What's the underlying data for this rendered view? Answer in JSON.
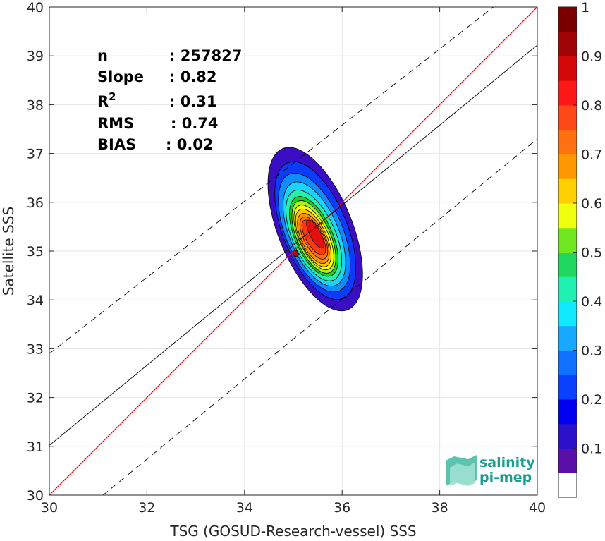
{
  "chart_data": {
    "type": "heatmap",
    "subtype": "density-contour-scatter",
    "xlabel": "TSG (GOSUD-Research-vessel) SSS",
    "ylabel": "Satellite SSS",
    "xlim": [
      30,
      40
    ],
    "ylim": [
      30,
      40
    ],
    "x_ticks": [
      "30",
      "32",
      "34",
      "36",
      "38",
      "40"
    ],
    "y_ticks": [
      "30",
      "31",
      "32",
      "33",
      "34",
      "35",
      "36",
      "37",
      "38",
      "39",
      "40"
    ],
    "grid": true,
    "stats": [
      {
        "label": "n",
        "value": ": 257827"
      },
      {
        "label": "Slope",
        "value": ": 0.82"
      },
      {
        "label": "R",
        "label_sup": "2",
        "value": ": 0.31"
      },
      {
        "label": "RMS",
        "value": ": 0.74"
      },
      {
        "label": "BIAS",
        "value": ": 0.02"
      }
    ],
    "lines": {
      "one_to_one": {
        "color": "#ff0000",
        "points": [
          [
            30,
            30
          ],
          [
            40,
            40
          ]
        ]
      },
      "regression": {
        "color": "#000000",
        "style": "solid",
        "points": [
          [
            30,
            31.02
          ],
          [
            40,
            39.22
          ]
        ]
      },
      "upper_bound": {
        "color": "#000000",
        "style": "dashed",
        "points": [
          [
            30,
            32.9
          ],
          [
            39.1,
            40
          ]
        ]
      },
      "lower_bound": {
        "color": "#000000",
        "style": "dashed",
        "points": [
          [
            31.1,
            30
          ],
          [
            40,
            37.3
          ]
        ]
      }
    },
    "density_center": {
      "x": 35.5,
      "y": 35.4
    },
    "density_levels": [
      {
        "level": 0.05,
        "color": "#3a0fc4",
        "cx": 35.45,
        "cy": 35.45,
        "rx": 0.76,
        "ry": 1.78,
        "rot": 68
      },
      {
        "level": 0.15,
        "color": "#0b3bff",
        "cx": 35.45,
        "cy": 35.42,
        "rx": 0.66,
        "ry": 1.5,
        "rot": 68
      },
      {
        "level": 0.25,
        "color": "#0f8cff",
        "cx": 35.43,
        "cy": 35.38,
        "rx": 0.58,
        "ry": 1.3,
        "rot": 67
      },
      {
        "level": 0.35,
        "color": "#18d4ff",
        "cx": 35.43,
        "cy": 35.35,
        "rx": 0.5,
        "ry": 1.14,
        "rot": 67
      },
      {
        "level": 0.45,
        "color": "#27f0a8",
        "cx": 35.42,
        "cy": 35.32,
        "rx": 0.44,
        "ry": 1.0,
        "rot": 66
      },
      {
        "level": 0.55,
        "color": "#1fd01f",
        "cx": 35.42,
        "cy": 35.3,
        "rx": 0.38,
        "ry": 0.88,
        "rot": 66
      },
      {
        "level": 0.6,
        "color": "#a8f516",
        "cx": 35.42,
        "cy": 35.29,
        "rx": 0.34,
        "ry": 0.8,
        "rot": 66
      },
      {
        "level": 0.65,
        "color": "#ffff00",
        "cx": 35.42,
        "cy": 35.28,
        "rx": 0.3,
        "ry": 0.72,
        "rot": 65
      },
      {
        "level": 0.7,
        "color": "#ffc800",
        "cx": 35.41,
        "cy": 35.27,
        "rx": 0.27,
        "ry": 0.64,
        "rot": 65
      },
      {
        "level": 0.75,
        "color": "#ff9000",
        "cx": 35.41,
        "cy": 35.26,
        "rx": 0.24,
        "ry": 0.56,
        "rot": 64
      },
      {
        "level": 0.8,
        "color": "#ff6a12",
        "cx": 35.42,
        "cy": 35.27,
        "rx": 0.2,
        "ry": 0.48,
        "rot": 62
      },
      {
        "level": 0.85,
        "color": "#ff3a12",
        "cx": 35.42,
        "cy": 35.28,
        "rx": 0.16,
        "ry": 0.4,
        "rot": 60
      },
      {
        "level": 0.9,
        "color": "#e41010",
        "cx": 35.45,
        "cy": 35.35,
        "rx": 0.11,
        "ry": 0.32,
        "rot": 62
      },
      {
        "level": 0.95,
        "color": "#b00808",
        "cx": 35.05,
        "cy": 34.95,
        "rx": 0.05,
        "ry": 0.07,
        "rot": 60
      }
    ],
    "colorbar": {
      "range": [
        0,
        1
      ],
      "tick_labels": [
        "0.1",
        "0.2",
        "0.3",
        "0.4",
        "0.5",
        "0.6",
        "0.7",
        "0.8",
        "0.9",
        "1"
      ],
      "tick_values": [
        0.1,
        0.2,
        0.3,
        0.4,
        0.5,
        0.6,
        0.7,
        0.8,
        0.9,
        1.0
      ],
      "colors": [
        "#ffffff",
        "#5a0fa8",
        "#2a10c8",
        "#0000f0",
        "#0a40ff",
        "#1070ff",
        "#18a8ff",
        "#10e8ff",
        "#20f0b0",
        "#20d860",
        "#70e820",
        "#f0ff10",
        "#ffd000",
        "#ff9800",
        "#ff7010",
        "#ff4818",
        "#ff1818",
        "#d40808",
        "#a00404",
        "#7a0000"
      ]
    }
  },
  "logo": {
    "line1": "salinity",
    "line2": "pi-mep"
  }
}
